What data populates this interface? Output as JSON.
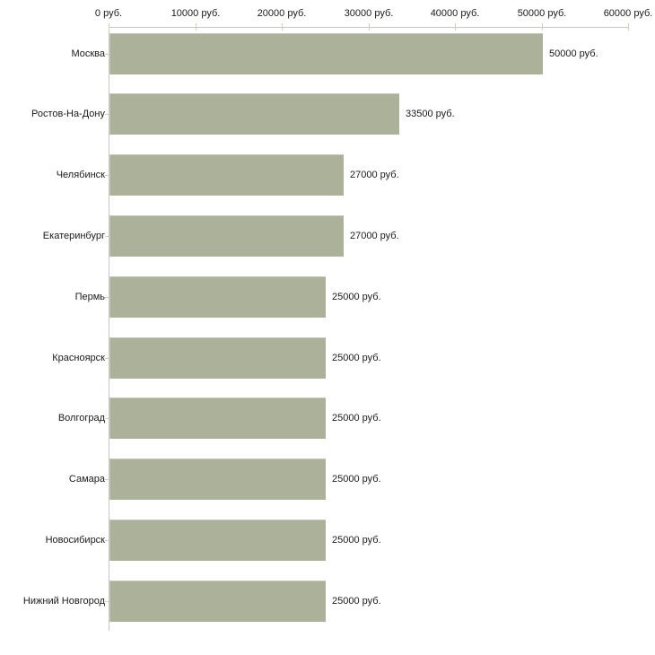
{
  "chart_data": {
    "type": "bar",
    "orientation": "horizontal",
    "title": "",
    "categories": [
      "Москва",
      "Ростов-На-Дону",
      "Челябинск",
      "Екатеринбург",
      "Пермь",
      "Красноярск",
      "Волгоград",
      "Самара",
      "Новосибирск",
      "Нижний Новгород"
    ],
    "values": [
      50000,
      33500,
      27000,
      27000,
      25000,
      25000,
      25000,
      25000,
      25000,
      25000
    ],
    "value_labels": [
      "50000 руб.",
      "33500 руб.",
      "27000 руб.",
      "27000 руб.",
      "25000 руб.",
      "25000 руб.",
      "25000 руб.",
      "25000 руб.",
      "25000 руб.",
      "25000 руб."
    ],
    "x_axis": {
      "tick_values": [
        0,
        10000,
        20000,
        30000,
        40000,
        50000,
        60000
      ],
      "tick_labels": [
        "0 руб.",
        "10000 руб.",
        "20000 руб.",
        "30000 руб.",
        "40000 руб.",
        "50000 руб.",
        "60000 руб."
      ],
      "range": [
        0,
        60000
      ],
      "position": "top"
    },
    "grid": false,
    "legend": "none",
    "colors": {
      "bar": "#abb299",
      "axis_line": "#c6c6c6",
      "tick": "#d2d2b2",
      "text": "#1a1a1a",
      "background": "#ffffff"
    }
  }
}
